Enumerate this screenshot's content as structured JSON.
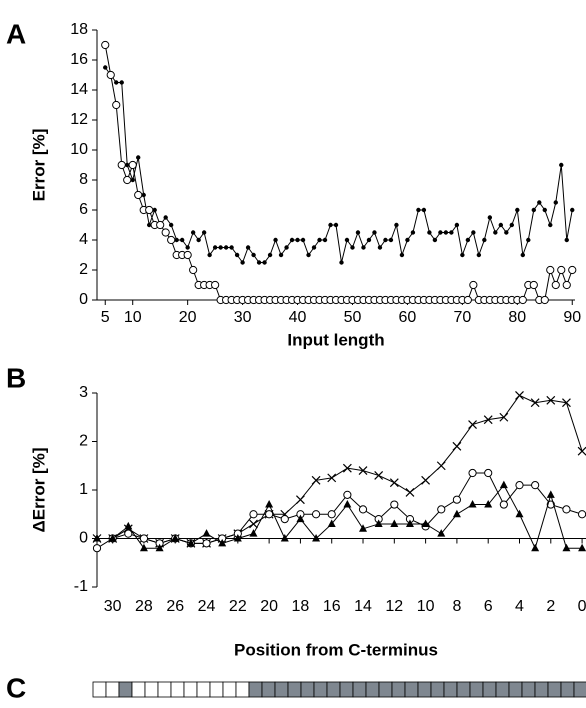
{
  "chart_data": [
    {
      "type": "line",
      "panel_label": "A",
      "x_label": "Input length",
      "y_label": "Error [%]",
      "x": [
        5,
        6,
        7,
        8,
        9,
        10,
        11,
        12,
        13,
        14,
        15,
        16,
        17,
        18,
        19,
        20,
        21,
        22,
        23,
        24,
        25,
        26,
        27,
        28,
        29,
        30,
        31,
        32,
        33,
        34,
        35,
        36,
        37,
        38,
        39,
        40,
        41,
        42,
        43,
        44,
        45,
        46,
        47,
        48,
        49,
        50,
        51,
        52,
        53,
        54,
        55,
        56,
        57,
        58,
        59,
        60,
        61,
        62,
        63,
        64,
        65,
        66,
        67,
        68,
        69,
        70,
        71,
        72,
        73,
        74,
        75,
        76,
        77,
        78,
        79,
        80,
        81,
        82,
        83,
        84,
        85,
        86,
        87,
        88,
        89,
        90
      ],
      "series": [
        {
          "color": "#000000",
          "marker": "dot",
          "values": [
            15.5,
            15,
            14.5,
            14.5,
            9,
            8,
            9.5,
            7,
            5,
            6,
            5,
            5.5,
            5,
            4,
            4,
            3.5,
            4.5,
            4,
            4.5,
            3,
            3.5,
            3.5,
            3.5,
            3.5,
            3,
            2.5,
            3.5,
            3,
            2.5,
            2.5,
            3,
            4,
            3,
            3.5,
            4,
            4,
            4,
            3,
            3.5,
            4,
            4,
            5,
            5,
            2.5,
            4,
            3.5,
            4.5,
            3.5,
            4,
            4.5,
            3.5,
            4,
            4,
            5,
            3,
            4,
            4.5,
            6,
            6,
            4.5,
            4,
            4.5,
            4.5,
            4.5,
            5,
            3,
            4,
            4.5,
            3,
            4,
            5.5,
            4.5,
            5,
            4.5,
            5,
            6,
            3,
            4,
            6,
            6.5,
            6,
            5,
            6.5,
            9,
            4,
            6
          ]
        },
        {
          "color": "#000000",
          "marker": "circle",
          "values": [
            17,
            15,
            13,
            9,
            8,
            9,
            7,
            6,
            6,
            5,
            5,
            4.5,
            4,
            3,
            3,
            3,
            2,
            1,
            1,
            1,
            1,
            0,
            0,
            0,
            0,
            0,
            0,
            0,
            0,
            0,
            0,
            0,
            0,
            0,
            0,
            0,
            0,
            0,
            0,
            0,
            0,
            0,
            0,
            0,
            0,
            0,
            0,
            0,
            0,
            0,
            0,
            0,
            0,
            0,
            0,
            0,
            0,
            0,
            0,
            0,
            0,
            0,
            0,
            0,
            0,
            0,
            0,
            1,
            0,
            0,
            0,
            0,
            0,
            0,
            0,
            0,
            0,
            1,
            1,
            0,
            0,
            2,
            1,
            2,
            1,
            2
          ]
        }
      ],
      "xlim": [
        3.5,
        90.5
      ],
      "ylim": [
        0,
        18
      ],
      "xticks": [
        5,
        10,
        20,
        30,
        40,
        50,
        60,
        70,
        80,
        90
      ],
      "yticks": [
        0,
        2,
        4,
        6,
        8,
        10,
        12,
        14,
        16,
        18
      ]
    },
    {
      "type": "line",
      "panel_label": "B",
      "x_label": "Position from C-terminus",
      "y_label": "ΔError [%]",
      "x": [
        31,
        30,
        29,
        28,
        27,
        26,
        25,
        24,
        23,
        22,
        21,
        20,
        19,
        18,
        17,
        16,
        15,
        14,
        13,
        12,
        11,
        10,
        9,
        8,
        7,
        6,
        5,
        4,
        3,
        2,
        1,
        0
      ],
      "series": [
        {
          "color": "#000000",
          "marker": "x",
          "values": [
            0,
            0,
            0.2,
            0,
            -0.1,
            0,
            -0.1,
            -0.1,
            0,
            0.1,
            0.3,
            0.5,
            0.5,
            0.8,
            1.2,
            1.25,
            1.45,
            1.4,
            1.3,
            1.15,
            0.95,
            1.2,
            1.5,
            1.9,
            2.35,
            2.45,
            2.5,
            2.95,
            2.8,
            2.85,
            2.8,
            1.8
          ]
        },
        {
          "color": "#000000",
          "marker": "circle",
          "values": [
            -0.2,
            0,
            0.1,
            0,
            -0.1,
            0,
            -0.1,
            -0.1,
            0,
            0.1,
            0.5,
            0.5,
            0.4,
            0.5,
            0.5,
            0.5,
            0.9,
            0.6,
            0.4,
            0.7,
            0.4,
            0.25,
            0.6,
            0.8,
            1.35,
            1.35,
            0.7,
            1.1,
            1.1,
            0.7,
            0.6,
            0.5
          ]
        },
        {
          "color": "#000000",
          "marker": "triangle",
          "values": [
            0,
            0,
            0.25,
            -0.2,
            -0.2,
            0,
            -0.1,
            0.1,
            -0.1,
            0,
            0.1,
            0.7,
            0,
            0.4,
            0,
            0.3,
            0.7,
            0.2,
            0.3,
            0.3,
            0.3,
            0.3,
            0.1,
            0.5,
            0.7,
            0.7,
            1.1,
            0.5,
            -0.2,
            0.9,
            -0.2,
            -0.2
          ]
        }
      ],
      "xlim": [
        31,
        -0.25
      ],
      "ylim": [
        -1,
        3
      ],
      "xticks": [
        30,
        28,
        26,
        24,
        22,
        20,
        18,
        16,
        14,
        12,
        10,
        8,
        6,
        4,
        2,
        0
      ],
      "yticks": [
        -1,
        0,
        1,
        2,
        3
      ]
    }
  ],
  "panel_c": {
    "label": "C"
  }
}
